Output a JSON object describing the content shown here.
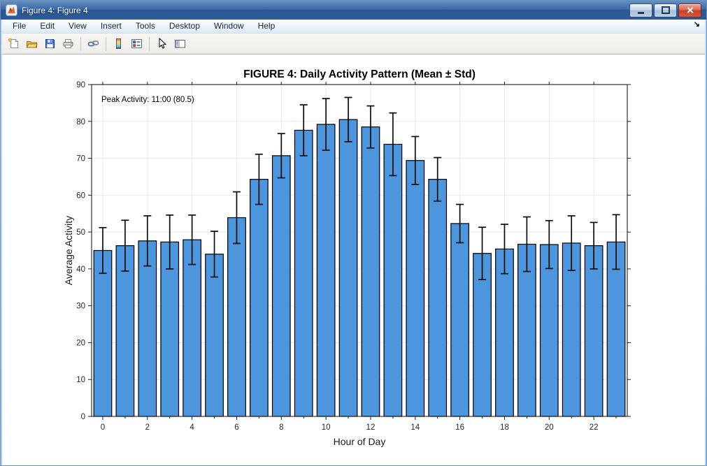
{
  "window": {
    "title": "Figure 4: Figure 4",
    "controls": [
      "minimize",
      "maximize",
      "close"
    ]
  },
  "menubar": {
    "items": [
      "File",
      "Edit",
      "View",
      "Insert",
      "Tools",
      "Desktop",
      "Window",
      "Help"
    ],
    "dock_arrow_glyph": "↘"
  },
  "toolbar": {
    "buttons": [
      "new-figure",
      "open-file",
      "save-figure",
      "print-figure",
      "link-plot",
      "insert-colorbar",
      "insert-legend",
      "edit-plot",
      "show-plot-tools"
    ]
  },
  "colors": {
    "bar_fill": "#4d95dd",
    "bar_edge": "#000000",
    "error_bar": "#0d0d0d",
    "grid": "#e8e8e8",
    "axis_box": "#1f1f1f",
    "tick_label": "#262626",
    "titlebar_blue": "#2e5b98",
    "close_red": "#c93f28"
  },
  "chart_data": {
    "type": "bar",
    "title": "FIGURE 4: Daily Activity Pattern (Mean ± Std)",
    "xlabel": "Hour of Day",
    "ylabel": "Average Activity",
    "annotation": "Peak Activity: 11:00 (80.5)",
    "categories": [
      0,
      1,
      2,
      3,
      4,
      5,
      6,
      7,
      8,
      9,
      10,
      11,
      12,
      13,
      14,
      15,
      16,
      17,
      18,
      19,
      20,
      21,
      22,
      23
    ],
    "values": [
      45.0,
      46.3,
      47.6,
      47.3,
      47.9,
      44.0,
      53.9,
      64.3,
      70.7,
      77.6,
      79.2,
      80.5,
      78.5,
      73.8,
      69.4,
      64.3,
      52.3,
      44.2,
      45.4,
      46.7,
      46.6,
      47.0,
      46.3,
      47.3
    ],
    "errors": [
      6.2,
      6.9,
      6.8,
      7.3,
      6.7,
      6.2,
      7.0,
      6.8,
      6.0,
      6.9,
      7.0,
      6.0,
      5.7,
      8.5,
      6.5,
      5.9,
      5.2,
      7.1,
      6.7,
      7.4,
      6.5,
      7.4,
      6.3,
      7.4
    ],
    "ylim": [
      0,
      90
    ],
    "yticks": [
      0,
      10,
      20,
      30,
      40,
      50,
      60,
      70,
      80,
      90
    ],
    "xticks_labeled": [
      0,
      2,
      4,
      6,
      8,
      10,
      12,
      14,
      16,
      18,
      20,
      22
    ],
    "grid": true,
    "legend": "none",
    "bar_width_fraction": 0.8
  }
}
